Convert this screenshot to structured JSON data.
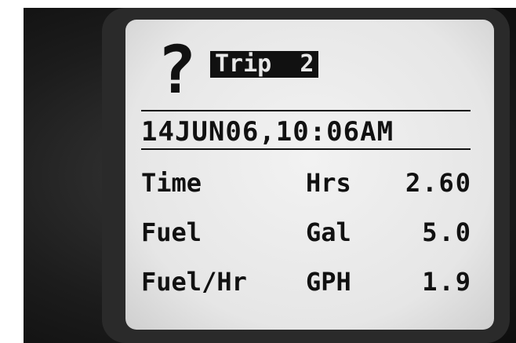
{
  "screen": {
    "header": {
      "icon": "?",
      "title": "Trip  2"
    },
    "datetime": "14JUN06,10:06AM",
    "rows": [
      [
        "Time",
        "Hrs",
        "2.60"
      ],
      [
        "Fuel",
        "Gal",
        "5.0"
      ],
      [
        "Fuel/Hr",
        "GPH",
        "1.9"
      ]
    ]
  }
}
